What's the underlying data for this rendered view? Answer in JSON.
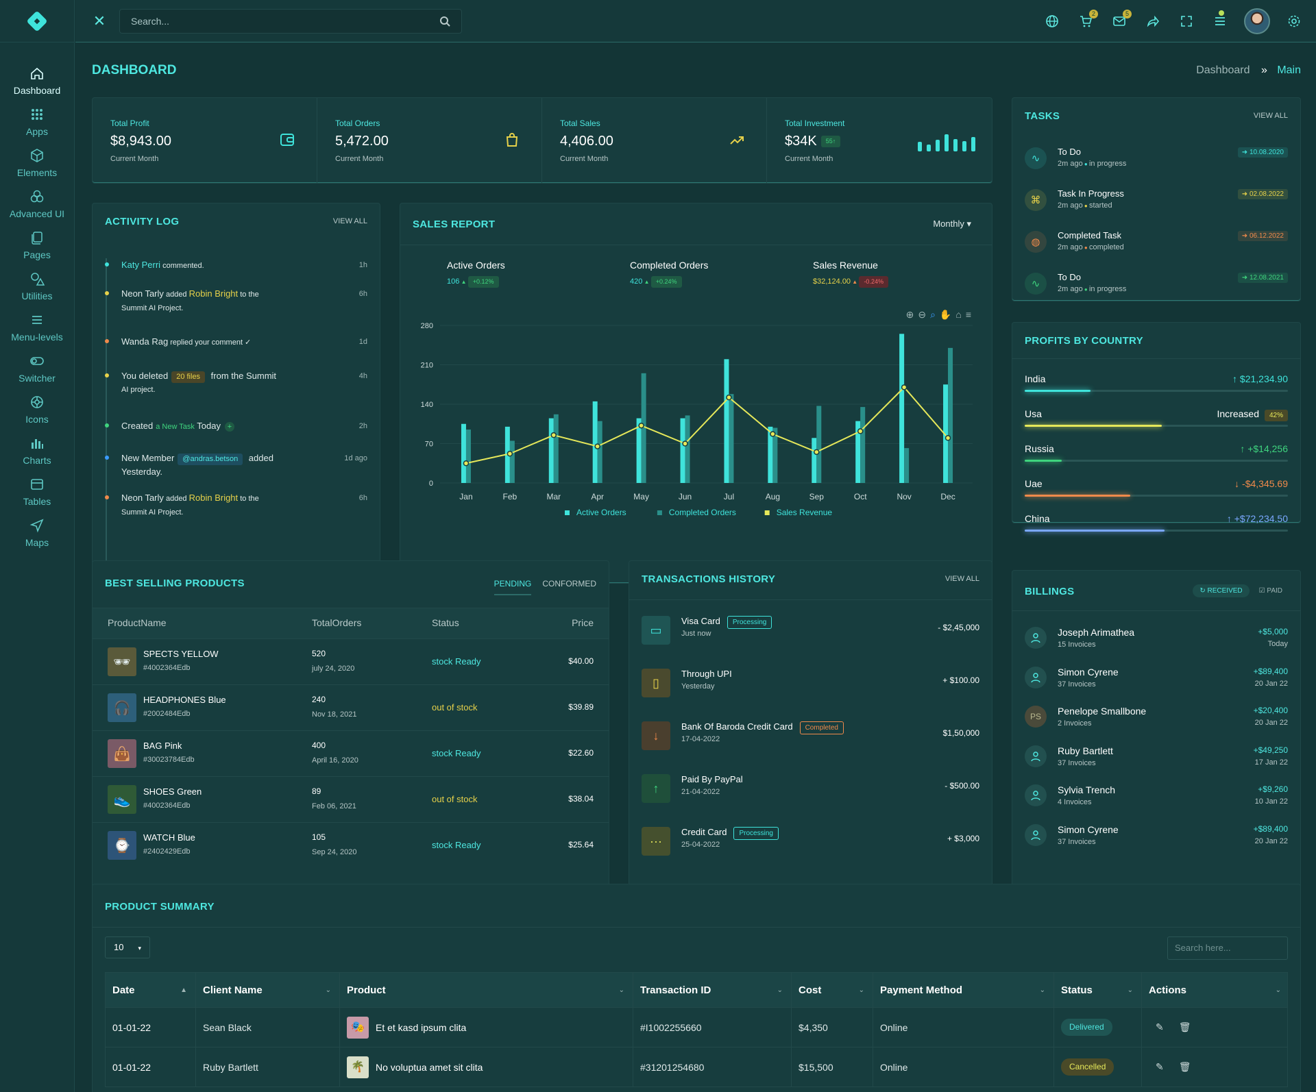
{
  "sidebar": {
    "items": [
      {
        "label": "Dashboard",
        "icon": "home-icon"
      },
      {
        "label": "Apps",
        "icon": "grid-icon"
      },
      {
        "label": "Elements",
        "icon": "cube-icon"
      },
      {
        "label": "Advanced UI",
        "icon": "circles-icon"
      },
      {
        "label": "Pages",
        "icon": "pages-icon"
      },
      {
        "label": "Utilities",
        "icon": "shapes-icon"
      },
      {
        "label": "Menu-levels",
        "icon": "menu-icon"
      },
      {
        "label": "Switcher",
        "icon": "toggle-icon"
      },
      {
        "label": "Icons",
        "icon": "icons-icon"
      },
      {
        "label": "Charts",
        "icon": "bar-chart-icon"
      },
      {
        "label": "Tables",
        "icon": "table-icon"
      },
      {
        "label": "Maps",
        "icon": "navigation-icon"
      }
    ]
  },
  "topbar": {
    "search_placeholder": "Search...",
    "cart_count": "2",
    "mail_count": "5"
  },
  "page": {
    "title": "DASHBOARD",
    "crumb_home": "Dashboard",
    "crumb_current": "Main"
  },
  "stats": [
    {
      "label": "Total Profit",
      "value": "$8,943.00",
      "sub": "Current Month",
      "icon": "wallet-icon"
    },
    {
      "label": "Total Orders",
      "value": "5,472.00",
      "sub": "Current Month",
      "icon": "bag-icon"
    },
    {
      "label": "Total Sales",
      "value": "4,406.00",
      "sub": "Current Month",
      "icon": "trend-up-icon"
    },
    {
      "label": "Total Investment",
      "value": "$34K",
      "badge": "55",
      "sub": "Current Month",
      "icon": "mini-bars-icon",
      "bars": [
        0.5,
        0.35,
        0.6,
        0.9,
        0.65,
        0.55,
        0.75
      ]
    }
  ],
  "activity": {
    "title": "ACTIVITY LOG",
    "view_all": "VIEW ALL",
    "items": [
      {
        "name": "Katy Perri",
        "text": " commented.",
        "time": "1h"
      },
      {
        "name": "Neon Tarly",
        "mid": " added ",
        "hl": "Robin Bright",
        "tail": " to the",
        "line2": "Summit AI Project.",
        "time": "6h"
      },
      {
        "name": "Wanda Rag",
        "text": " replied your comment ✓",
        "time": "1d"
      },
      {
        "name": "You deleted",
        "tag": "20 files",
        "tail": " from the Summit",
        "line2": "AI project.",
        "time": "4h"
      },
      {
        "name": "Created",
        "hl": "a New Task",
        "tail": " Today",
        "time": "2h"
      },
      {
        "name": "New Member",
        "tag": "@andras.betson",
        "tail": " added",
        "line2": "Yesterday.",
        "time": "1d ago"
      },
      {
        "name": "Neon Tarly",
        "mid": " added ",
        "hl": "Robin Bright",
        "tail": " to the",
        "line2": "Summit AI Project.",
        "time": "6h"
      }
    ]
  },
  "sales_report": {
    "title": "SALES REPORT",
    "period": "Monthly",
    "kpis": [
      {
        "label": "Active Orders",
        "value": "106",
        "delta": "+0.12%"
      },
      {
        "label": "Completed Orders",
        "value": "420",
        "delta": "+0.24%"
      },
      {
        "label": "Sales Revenue",
        "value": "$32,124.00",
        "delta": "-0.24%"
      }
    ]
  },
  "chart_data": {
    "type": "bar",
    "categories": [
      "Jan",
      "Feb",
      "Mar",
      "Apr",
      "May",
      "Jun",
      "Jul",
      "Aug",
      "Sep",
      "Oct",
      "Nov",
      "Dec"
    ],
    "ylim": [
      0,
      280
    ],
    "yticks": [
      0,
      70,
      140,
      210,
      280
    ],
    "series": [
      {
        "name": "Active Orders",
        "type": "bar",
        "color": "#3fe3db",
        "values": [
          105,
          100,
          115,
          145,
          115,
          115,
          220,
          100,
          80,
          110,
          265,
          175
        ]
      },
      {
        "name": "Completed Orders",
        "type": "bar",
        "color": "#2a8f8a",
        "values": [
          95,
          75,
          122,
          110,
          195,
          120,
          158,
          98,
          137,
          135,
          62,
          240
        ]
      },
      {
        "name": "Sales Revenue",
        "type": "line",
        "color": "#e6e85a",
        "values": [
          35,
          52,
          85,
          65,
          102,
          70,
          152,
          87,
          55,
          92,
          170,
          80
        ]
      }
    ]
  },
  "tasks": {
    "title": "TASKS",
    "view_all": "VIEW ALL",
    "items": [
      {
        "title": "To Do",
        "ago": "2m ago",
        "status": "in progress",
        "date": "10.08.2020",
        "color": "#3fe3db",
        "icon": "pulse-icon"
      },
      {
        "title": "Task In Progress",
        "ago": "2m ago",
        "status": "started",
        "date": "02.08.2022",
        "color": "#e6d14a",
        "icon": "command-icon"
      },
      {
        "title": "Completed Task",
        "ago": "2m ago",
        "status": "completed",
        "date": "06.12.2022",
        "color": "#f08a4b",
        "icon": "globe-icon"
      },
      {
        "title": "To Do",
        "ago": "2m ago",
        "status": "in progress",
        "date": "12.08.2021",
        "color": "#3fd47e",
        "icon": "pulse-icon"
      }
    ]
  },
  "profits": {
    "title": "PROFITS BY COUNTRY",
    "items": [
      {
        "country": "India",
        "value": "$21,234.90",
        "fill": 0.25,
        "color": "#3fe3db",
        "arrow": "↑"
      },
      {
        "country": "Usa",
        "value": "Increased",
        "badge": "42%",
        "fill": 0.52,
        "color": "#e6e85a",
        "arrow": ""
      },
      {
        "country": "Russia",
        "value": "+$14,256",
        "fill": 0.14,
        "color": "#3fd47e",
        "arrow": "↑"
      },
      {
        "country": "Uae",
        "value": "-$4,345.69",
        "fill": 0.4,
        "color": "#f08a4b",
        "arrow": "↓"
      },
      {
        "country": "China",
        "value": "+$72,234.50",
        "fill": 0.53,
        "color": "#7aa8ff",
        "arrow": "↑"
      }
    ]
  },
  "billings": {
    "title": "BILLINGS",
    "tab_received": "RECEIVED",
    "tab_paid": "PAID",
    "items": [
      {
        "name": "Joseph Arimathea",
        "sub": "15 Invoices",
        "amount": "+$5,000",
        "date": "Today",
        "initials": ""
      },
      {
        "name": "Simon Cyrene",
        "sub": "37 Invoices",
        "amount": "+$89,400",
        "date": "20 Jan 22",
        "initials": ""
      },
      {
        "name": "Penelope Smallbone",
        "sub": "2 Invoices",
        "amount": "+$20,400",
        "date": "20 Jan 22",
        "initials": "PS"
      },
      {
        "name": "Ruby Bartlett",
        "sub": "37 Invoices",
        "amount": "+$49,250",
        "date": "17 Jan 22",
        "initials": ""
      },
      {
        "name": "Sylvia Trench",
        "sub": "4 Invoices",
        "amount": "+$9,260",
        "date": "10 Jan 22",
        "initials": ""
      },
      {
        "name": "Simon Cyrene",
        "sub": "37 Invoices",
        "amount": "+$89,400",
        "date": "20 Jan 22",
        "initials": ""
      }
    ]
  },
  "best_selling": {
    "title": "BEST SELLING PRODUCTS",
    "tab_pending": "PENDING",
    "tab_conformed": "CONFORMED",
    "headers": [
      "ProductName",
      "TotalOrders",
      "Status",
      "Price"
    ],
    "rows": [
      {
        "name": "SPECTS YELLOW",
        "code": "#4002364Edb",
        "orders": "520",
        "date": "july 24, 2020",
        "status": "stock Ready",
        "price": "$40.00",
        "thumb": "🕶",
        "bg": "#5a5a3a"
      },
      {
        "name": "HEADPHONES Blue",
        "code": "#2002484Edb",
        "orders": "240",
        "date": "Nov 18, 2021",
        "status": "out of stock",
        "price": "$39.89",
        "thumb": "🎧",
        "bg": "#2d5f7a"
      },
      {
        "name": "BAG Pink",
        "code": "#30023784Edb",
        "orders": "400",
        "date": "April 16, 2020",
        "status": "stock Ready",
        "price": "$22.60",
        "thumb": "👜",
        "bg": "#7a5a66"
      },
      {
        "name": "SHOES Green",
        "code": "#4002364Edb",
        "orders": "89",
        "date": "Feb 06, 2021",
        "status": "out of stock",
        "price": "$38.04",
        "thumb": "👟",
        "bg": "#2f5a36"
      },
      {
        "name": "WATCH Blue",
        "code": "#2402429Edb",
        "orders": "105",
        "date": "Sep 24, 2020",
        "status": "stock Ready",
        "price": "$25.64",
        "thumb": "⌚",
        "bg": "#2d5478"
      }
    ]
  },
  "transactions": {
    "title": "TRANSACTIONS HISTORY",
    "view_all": "VIEW ALL",
    "items": [
      {
        "title": "Visa Card",
        "tag": "Processing",
        "sub": "Just now",
        "amount": "- $2,45,000",
        "icon": "card-icon",
        "glyph": "▭",
        "color": "#3fe3db",
        "bg": "#1f5554"
      },
      {
        "title": "Through UPI",
        "tag": "",
        "sub": "Yesterday",
        "amount": "+ $100.00",
        "icon": "phone-icon",
        "glyph": "▯",
        "color": "#e6d14a",
        "bg": "#4a4a2e"
      },
      {
        "title": "Bank Of Baroda Credit Card",
        "tag": "Completed",
        "sub": "17-04-2022",
        "amount": "$1,50,000",
        "icon": "arrow-down-icon",
        "glyph": "↓",
        "color": "#f08a4b",
        "bg": "#4a3f2e"
      },
      {
        "title": "Paid By PayPal",
        "tag": "",
        "sub": "21-04-2022",
        "amount": "- $500.00",
        "icon": "arrow-up-icon",
        "glyph": "↑",
        "color": "#3fd47e",
        "bg": "#1f4f3a"
      },
      {
        "title": "Credit Card",
        "tag": "Processing",
        "sub": "25-04-2022",
        "amount": "+ $3,000",
        "icon": "dots-icon",
        "glyph": "···",
        "color": "#e6e85a",
        "bg": "#45502e"
      }
    ]
  },
  "product_summary": {
    "title": "PRODUCT SUMMARY",
    "page_size": "10",
    "search_placeholder": "Search here...",
    "headers": [
      "Date",
      "Client Name",
      "Product",
      "Transaction ID",
      "Cost",
      "Payment Method",
      "Status",
      "Actions"
    ],
    "rows": [
      {
        "date": "01-01-22",
        "client": "Sean Black",
        "product": "Et et kasd ipsum clita",
        "tid": "#I1002255660",
        "cost": "$4,350",
        "method": "Online",
        "status": "Delivered"
      },
      {
        "date": "01-01-22",
        "client": "Ruby Bartlett",
        "product": "No voluptua amet sit clita",
        "tid": "#31201254680",
        "cost": "$15,500",
        "method": "Online",
        "status": "Cancelled"
      }
    ]
  }
}
